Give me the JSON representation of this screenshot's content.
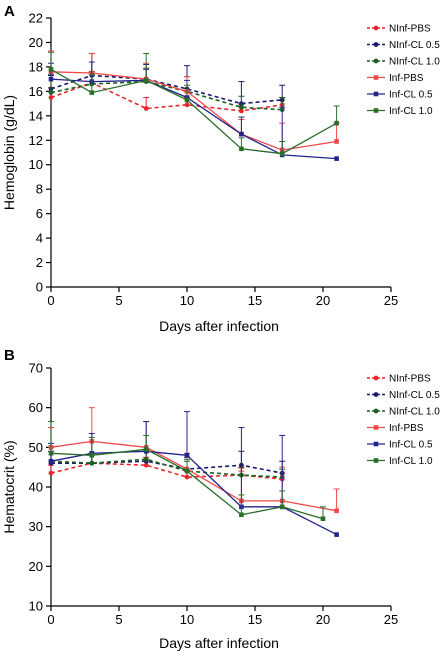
{
  "chart_data": [
    {
      "panel": "A",
      "type": "line",
      "xlabel": "Days after infection",
      "ylabel": "Hemoglobin (g/dL)",
      "xlim": [
        0,
        25
      ],
      "ylim": [
        0,
        22
      ],
      "xticks": [
        0,
        5,
        10,
        15,
        20,
        25
      ],
      "yticks": [
        0,
        2,
        4,
        6,
        8,
        10,
        12,
        14,
        16,
        18,
        20,
        22
      ],
      "grid": false,
      "legend_position": "top-right",
      "series": [
        {
          "name": "NInf-PBS",
          "color": "#e8262b",
          "dashed": true,
          "marker": "circle",
          "x": [
            0,
            3,
            7,
            10,
            14,
            17
          ],
          "y": [
            15.5,
            16.7,
            14.6,
            14.9,
            14.4,
            14.9
          ],
          "err": [
            0.8,
            0.9,
            0.9,
            0.6,
            0.5,
            0.6
          ]
        },
        {
          "name": "NInf-CL 0.5",
          "color": "#1a1a6e",
          "dashed": true,
          "marker": "circle",
          "x": [
            0,
            3,
            7,
            10,
            14,
            17
          ],
          "y": [
            16.2,
            17.3,
            17.0,
            16.2,
            15.0,
            15.3
          ],
          "err": [
            1.1,
            1.8,
            1.2,
            1.9,
            1.8,
            1.2
          ]
        },
        {
          "name": "NInf-CL 1.0",
          "color": "#1f5f1f",
          "dashed": true,
          "marker": "circle",
          "x": [
            0,
            3,
            7,
            10,
            14,
            17
          ],
          "y": [
            15.9,
            16.6,
            16.8,
            16.0,
            14.7,
            14.5
          ],
          "err": [
            1.5,
            1.0,
            1.1,
            1.2,
            0.9,
            1.0
          ]
        },
        {
          "name": "Inf-PBS",
          "color": "#f04848",
          "dashed": false,
          "marker": "square",
          "x": [
            0,
            3,
            7,
            10,
            14,
            17,
            21
          ],
          "y": [
            17.6,
            17.5,
            17.0,
            16.0,
            12.5,
            11.2,
            11.9
          ],
          "err": [
            1.7,
            1.6,
            1.3,
            1.2,
            1.2,
            2.2,
            1.5
          ]
        },
        {
          "name": "Inf-CL 0.5",
          "color": "#23238e",
          "dashed": false,
          "marker": "square",
          "x": [
            0,
            3,
            7,
            10,
            14,
            17,
            21
          ],
          "y": [
            17.0,
            16.8,
            16.9,
            15.5,
            12.5,
            10.8,
            10.5
          ],
          "err": [
            1.3,
            1.6,
            0.9,
            1.4,
            1.4,
            3.9,
            0
          ]
        },
        {
          "name": "Inf-CL 1.0",
          "color": "#2a6e2a",
          "dashed": false,
          "marker": "square",
          "x": [
            0,
            3,
            7,
            10,
            14,
            17,
            21
          ],
          "y": [
            17.8,
            15.9,
            16.9,
            15.3,
            11.3,
            10.9,
            13.4
          ],
          "err": [
            1.4,
            1.5,
            2.2,
            1.2,
            0.9,
            1.0,
            1.4
          ]
        }
      ]
    },
    {
      "panel": "B",
      "type": "line",
      "xlabel": "Days after infection",
      "ylabel": "Hematocrit (%)",
      "xlim": [
        0,
        25
      ],
      "ylim": [
        10,
        70
      ],
      "xticks": [
        0,
        5,
        10,
        15,
        20,
        25
      ],
      "yticks": [
        10,
        20,
        30,
        40,
        50,
        60,
        70
      ],
      "grid": false,
      "legend_position": "top-right",
      "series": [
        {
          "name": "NInf-PBS",
          "color": "#e8262b",
          "dashed": true,
          "marker": "circle",
          "x": [
            0,
            3,
            7,
            10,
            14,
            17
          ],
          "y": [
            43.5,
            46.0,
            45.5,
            42.5,
            43.0,
            42.0
          ],
          "err": [
            2.0,
            2.2,
            2.0,
            1.5,
            1.8,
            1.5
          ]
        },
        {
          "name": "NInf-CL 0.5",
          "color": "#1a1a6e",
          "dashed": true,
          "marker": "circle",
          "x": [
            0,
            3,
            7,
            10,
            14,
            17
          ],
          "y": [
            46.0,
            46.0,
            46.5,
            44.5,
            45.5,
            43.5
          ],
          "err": [
            3.0,
            2.5,
            3.0,
            3.0,
            3.5,
            3.0
          ]
        },
        {
          "name": "NInf-CL 1.0",
          "color": "#1f5f1f",
          "dashed": true,
          "marker": "circle",
          "x": [
            0,
            3,
            7,
            10,
            14,
            17
          ],
          "y": [
            46.5,
            46.0,
            47.0,
            44.0,
            43.0,
            42.5
          ],
          "err": [
            3.5,
            2.5,
            2.0,
            2.5,
            2.0,
            2.0
          ]
        },
        {
          "name": "Inf-PBS",
          "color": "#f04848",
          "dashed": false,
          "marker": "square",
          "x": [
            0,
            3,
            7,
            10,
            14,
            17,
            21
          ],
          "y": [
            50.0,
            51.5,
            50.0,
            44.5,
            36.5,
            36.5,
            34.0
          ],
          "err": [
            5.0,
            8.5,
            6.5,
            4.0,
            7.5,
            8.5,
            5.5
          ]
        },
        {
          "name": "Inf-CL 0.5",
          "color": "#23238e",
          "dashed": false,
          "marker": "square",
          "x": [
            0,
            3,
            7,
            10,
            14,
            17,
            21
          ],
          "y": [
            46.5,
            48.5,
            49.0,
            48.0,
            35.0,
            35.0,
            28.0
          ],
          "err": [
            4.5,
            5.0,
            7.5,
            11.0,
            20.0,
            18.0,
            0
          ]
        },
        {
          "name": "Inf-CL 1.0",
          "color": "#2a6e2a",
          "dashed": false,
          "marker": "square",
          "x": [
            0,
            3,
            7,
            10,
            14,
            17,
            20
          ],
          "y": [
            48.5,
            48.0,
            49.5,
            44.0,
            33.0,
            35.0,
            32.0
          ],
          "err": [
            8.0,
            4.5,
            3.5,
            3.0,
            5.0,
            4.0,
            3.0
          ]
        }
      ]
    }
  ]
}
